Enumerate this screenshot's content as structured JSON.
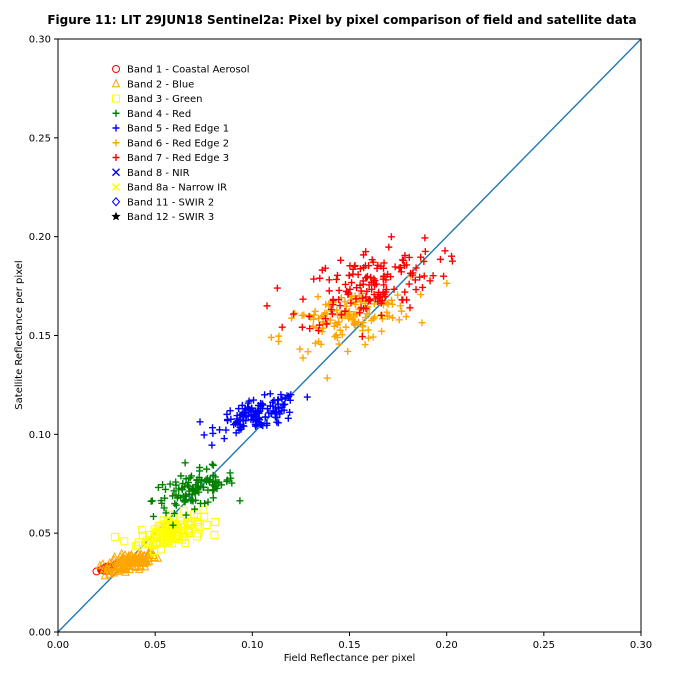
{
  "chart_data": {
    "type": "scatter",
    "title": "Figure 11: LIT 29JUN18  Sentinel2a: Pixel by pixel comparison of field and satellite data",
    "xlabel": "Field Reflectance per pixel",
    "ylabel": "Satellite Reflectance per pixel",
    "xlim": [
      0.0,
      0.3
    ],
    "ylim": [
      0.0,
      0.3
    ],
    "xticks": [
      "0.00",
      "0.05",
      "0.10",
      "0.15",
      "0.20",
      "0.25",
      "0.30"
    ],
    "yticks": [
      "0.00",
      "0.05",
      "0.10",
      "0.15",
      "0.20",
      "0.25",
      "0.30"
    ],
    "grid": false,
    "legend_position": "upper-left",
    "reference_line": {
      "x": [
        0.0,
        0.3
      ],
      "y": [
        0.0,
        0.3
      ],
      "color": "#1f77b4"
    },
    "series": [
      {
        "name": "Band 1 - Coastal Aerosol",
        "marker": "circle",
        "color": "#ff0000",
        "center": [
          0.026,
          0.0325
        ],
        "spread": [
          0.004,
          0.0008
        ],
        "n": 20
      },
      {
        "name": "Band 2 - Blue",
        "marker": "triangle",
        "color": "#ffa500",
        "center": [
          0.037,
          0.035
        ],
        "spread": [
          0.009,
          0.003
        ],
        "n": 110
      },
      {
        "name": "Band 3 - Green",
        "marker": "square",
        "color": "#ffff00",
        "center": [
          0.058,
          0.051
        ],
        "spread": [
          0.011,
          0.005
        ],
        "n": 130
      },
      {
        "name": "Band 4 - Red",
        "marker": "plus",
        "color": "#008000",
        "center": [
          0.07,
          0.072
        ],
        "spread": [
          0.014,
          0.006
        ],
        "n": 110
      },
      {
        "name": "Band 5 - Red Edge 1",
        "marker": "plus",
        "color": "#0000ff",
        "center": [
          0.103,
          0.11
        ],
        "spread": [
          0.014,
          0.005
        ],
        "n": 130
      },
      {
        "name": "Band 6 - Red Edge 2",
        "marker": "plus",
        "color": "#ffa500",
        "center": [
          0.148,
          0.158
        ],
        "spread": [
          0.022,
          0.009
        ],
        "n": 130
      },
      {
        "name": "Band 7 - Red Edge 3",
        "marker": "plus",
        "color": "#ff0000",
        "center": [
          0.16,
          0.176
        ],
        "spread": [
          0.024,
          0.012
        ],
        "n": 150
      },
      {
        "name": "Band 8 - NIR",
        "marker": "x",
        "color": "#0000ff"
      },
      {
        "name": "Band 8a - Narrow IR",
        "marker": "x",
        "color": "#ffff00"
      },
      {
        "name": "Band 11 - SWIR 2",
        "marker": "diamond",
        "color": "#0000ff"
      },
      {
        "name": "Band 12 - SWIR 3",
        "marker": "star",
        "color": "#000000"
      }
    ]
  }
}
